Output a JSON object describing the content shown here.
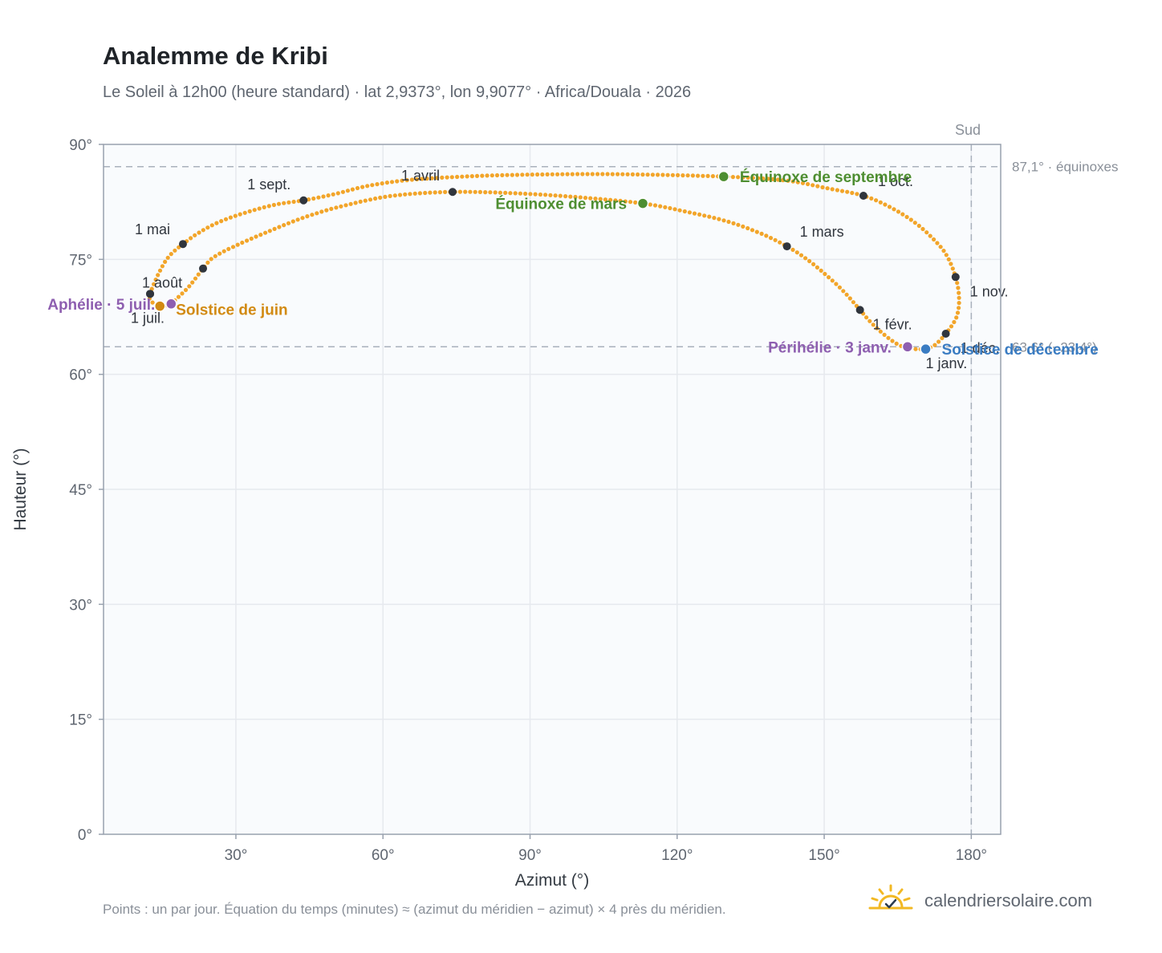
{
  "header": {
    "title": "Analemme de Kribi",
    "subtitle": "Le Soleil à 12h00 (heure standard) · lat 2,9373°, lon 9,9077° · Africa/Douala · 2026"
  },
  "footer": {
    "note": "Points : un par jour. Équation du temps (minutes) ≈ (azimut du méridien − azimut) × 4 près du méridien.",
    "brand": "calendriersolaire.com"
  },
  "colors": {
    "curve": "#f2a52a",
    "month_point": "#30353d",
    "equinox": "#4e8e31",
    "solstice_june": "#d28a12",
    "solstice_dec": "#3a7cc2",
    "aphelion_perihelion": "#8e5fb0",
    "grid": "#e6e9ee",
    "plot_bg": "#f9fbfd",
    "axis_frame": "#98a1ae"
  },
  "chart_data": {
    "type": "scatter",
    "xlabel": "Azimut (°)",
    "ylabel": "Hauteur (°)",
    "xlim": [
      3,
      186
    ],
    "ylim": [
      0,
      90
    ],
    "x_ticks": [
      30,
      60,
      90,
      120,
      150,
      180
    ],
    "x_tick_labels": [
      "30°",
      "60°",
      "90°",
      "120°",
      "150°",
      "180°"
    ],
    "y_ticks": [
      0,
      15,
      30,
      45,
      60,
      75,
      90
    ],
    "y_tick_labels": [
      "0°",
      "15°",
      "30°",
      "45°",
      "60°",
      "75°",
      "90°"
    ],
    "grid": true,
    "meridian": {
      "azimuth": 180,
      "label": "Sud"
    },
    "reference_lines": [
      {
        "altitude": 87.1,
        "label": "87,1° · équinoxes"
      },
      {
        "altitude": 63.6,
        "label": "63,6° (−23,4°)"
      }
    ],
    "analemma_path": [
      [
        170.7,
        63.3
      ],
      [
        168.5,
        63.3
      ],
      [
        166.5,
        63.5
      ],
      [
        164.5,
        64.1
      ],
      [
        162.0,
        65.3
      ],
      [
        159.5,
        66.8
      ],
      [
        157.3,
        68.4
      ],
      [
        154.0,
        70.8
      ],
      [
        150.5,
        72.9
      ],
      [
        146.5,
        75.0
      ],
      [
        142.4,
        76.7
      ],
      [
        137.0,
        78.4
      ],
      [
        130.0,
        80.0
      ],
      [
        122.0,
        81.2
      ],
      [
        113.0,
        82.3
      ],
      [
        100.0,
        83.1
      ],
      [
        88.0,
        83.6
      ],
      [
        74.2,
        83.8
      ],
      [
        62.0,
        83.3
      ],
      [
        52.0,
        82.0
      ],
      [
        44.0,
        80.5
      ],
      [
        36.5,
        78.6
      ],
      [
        30.0,
        76.8
      ],
      [
        25.5,
        75.3
      ],
      [
        23.3,
        73.8
      ],
      [
        20.5,
        71.5
      ],
      [
        17.8,
        69.8
      ],
      [
        16.8,
        69.2
      ],
      [
        14.5,
        68.9
      ],
      [
        12.8,
        69.5
      ],
      [
        12.5,
        70.5
      ],
      [
        14.5,
        73.5
      ],
      [
        16.5,
        75.5
      ],
      [
        19.2,
        77.0
      ],
      [
        22.5,
        78.5
      ],
      [
        27.0,
        80.0
      ],
      [
        33.0,
        81.3
      ],
      [
        38.5,
        82.2
      ],
      [
        43.8,
        82.7
      ],
      [
        50.0,
        83.5
      ],
      [
        57.0,
        84.6
      ],
      [
        66.0,
        85.4
      ],
      [
        80.0,
        85.9
      ],
      [
        95.0,
        86.1
      ],
      [
        110.0,
        86.1
      ],
      [
        129.5,
        85.8
      ],
      [
        142.0,
        85.3
      ],
      [
        150.5,
        84.3
      ],
      [
        158.0,
        83.3
      ],
      [
        163.5,
        81.8
      ],
      [
        168.5,
        79.8
      ],
      [
        172.5,
        77.5
      ],
      [
        175.0,
        75.5
      ],
      [
        176.8,
        72.7
      ],
      [
        177.5,
        70.0
      ],
      [
        177.0,
        67.5
      ],
      [
        174.8,
        65.3
      ],
      [
        172.5,
        63.8
      ],
      [
        170.7,
        63.3
      ]
    ],
    "month_points": [
      {
        "label": "1 janv.",
        "azimuth": 170.7,
        "altitude": 63.3
      },
      {
        "label": "1 févr.",
        "azimuth": 157.3,
        "altitude": 68.4
      },
      {
        "label": "1 mars",
        "azimuth": 142.4,
        "altitude": 76.7
      },
      {
        "label": "1 avril",
        "azimuth": 74.2,
        "altitude": 83.8
      },
      {
        "label": "1 mai",
        "azimuth": 19.2,
        "altitude": 77.0
      },
      {
        "label": "",
        "azimuth": 23.3,
        "altitude": 73.8
      },
      {
        "label": "1 juil.",
        "azimuth": 12.5,
        "altitude": 70.5
      },
      {
        "label": "1 août",
        "azimuth": 12.5,
        "altitude": 70.5
      },
      {
        "label": "1 sept.",
        "azimuth": 43.8,
        "altitude": 82.7
      },
      {
        "label": "1 oct.",
        "azimuth": 158.0,
        "altitude": 83.3
      },
      {
        "label": "1 nov.",
        "azimuth": 176.8,
        "altitude": 72.7
      },
      {
        "label": "1 déc.",
        "azimuth": 174.8,
        "altitude": 65.3
      }
    ],
    "events": [
      {
        "label": "Équinoxe de mars",
        "azimuth": 113.0,
        "altitude": 82.3,
        "kind": "equinox"
      },
      {
        "label": "Équinoxe de septembre",
        "azimuth": 129.5,
        "altitude": 85.8,
        "kind": "equinox"
      },
      {
        "label": "Solstice de juin",
        "azimuth": 14.5,
        "altitude": 68.9,
        "kind": "solstice_june"
      },
      {
        "label": "Solstice de décembre",
        "azimuth": 170.7,
        "altitude": 63.3,
        "kind": "solstice_dec"
      },
      {
        "label": "Aphélie · 5 juil.",
        "azimuth": 16.8,
        "altitude": 69.2,
        "kind": "aphelion"
      },
      {
        "label": "Périhélie · 3 janv.",
        "azimuth": 167.0,
        "altitude": 63.6,
        "kind": "perihelion"
      }
    ]
  }
}
